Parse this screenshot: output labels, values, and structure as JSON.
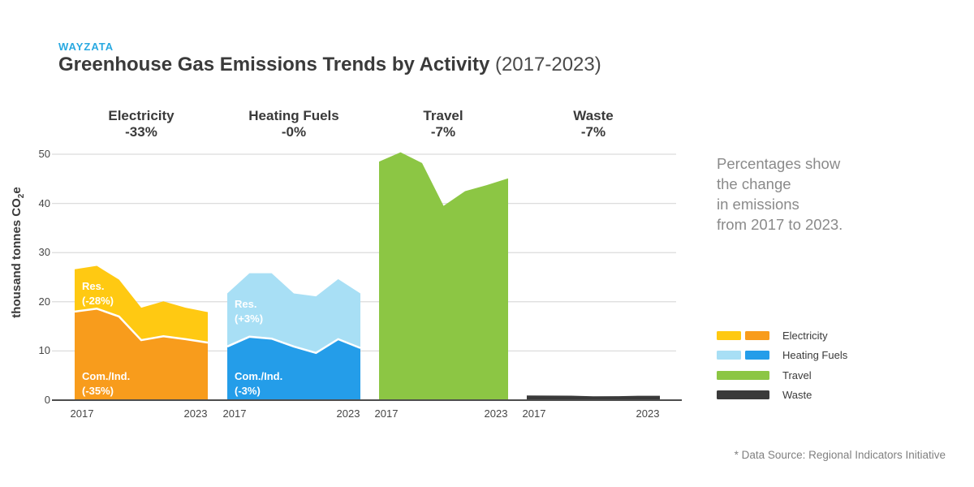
{
  "brand": {
    "name": "WAYZATA",
    "color": "#29a9e1"
  },
  "title": {
    "main": "Greenhouse Gas Emissions Trends by Activity",
    "period": " (2017-2023)"
  },
  "y_axis": {
    "title_pre": "thousand tonnes CO",
    "title_sub": "2",
    "title_post": "e",
    "ticks": [
      "0",
      "10",
      "20",
      "30",
      "40",
      "50"
    ]
  },
  "x_axis": {
    "start_label": "2017",
    "end_label": "2023"
  },
  "annotation": {
    "text": "Percentages show\nthe change\nin emissions\nfrom 2017 to 2023."
  },
  "legend": [
    {
      "label": "Electricity",
      "colors": [
        "#FFC912",
        "#F89C1C"
      ]
    },
    {
      "label": "Heating Fuels",
      "colors": [
        "#A8DFF5",
        "#249DE9"
      ]
    },
    {
      "label": "Travel",
      "colors": [
        "#8CC644"
      ]
    },
    {
      "label": "Waste",
      "colors": [
        "#3A3A3A"
      ]
    }
  ],
  "footnote": "*  Data Source: Regional Indicators Initiative",
  "chart_data": {
    "type": "area",
    "subtype": "stacked-area-small-multiples",
    "years": [
      2017,
      2018,
      2019,
      2020,
      2021,
      2022,
      2023
    ],
    "ylabel": "thousand tonnes CO2e",
    "ylim": [
      0,
      50
    ],
    "grid": true,
    "groups": [
      {
        "name": "Electricity",
        "change": "-33%",
        "series": [
          {
            "name": "Com./Ind.",
            "change": "(-35%)",
            "color": "#F89C1C",
            "values": [
              18.0,
              18.6,
              17.0,
              12.2,
              13.0,
              12.4,
              11.7
            ]
          },
          {
            "name": "Res.",
            "change": "(-28%)",
            "color": "#FFC912",
            "values": [
              8.6,
              8.7,
              7.5,
              6.6,
              7.1,
              6.4,
              6.2
            ]
          }
        ]
      },
      {
        "name": "Heating Fuels",
        "change": "-0%",
        "series": [
          {
            "name": "Com./Ind.",
            "change": "(-3%)",
            "color": "#249DE9",
            "values": [
              10.9,
              12.9,
              12.5,
              10.9,
              9.6,
              12.4,
              10.6
            ]
          },
          {
            "name": "Res.",
            "change": "(+3%)",
            "color": "#A8DFF5",
            "values": [
              10.8,
              12.9,
              13.3,
              10.8,
              11.5,
              12.2,
              11.1
            ]
          }
        ]
      },
      {
        "name": "Travel",
        "change": "-7%",
        "series": [
          {
            "name": "",
            "change": "",
            "color": "#8CC644",
            "values": [
              48.5,
              50.4,
              48.2,
              39.5,
              42.5,
              43.7,
              45.1
            ]
          }
        ]
      },
      {
        "name": "Waste",
        "change": "-7%",
        "series": [
          {
            "name": "",
            "change": "",
            "color": "#3A3A3A",
            "values": [
              0.95,
              0.93,
              0.9,
              0.78,
              0.8,
              0.88,
              0.88
            ]
          }
        ]
      }
    ]
  }
}
